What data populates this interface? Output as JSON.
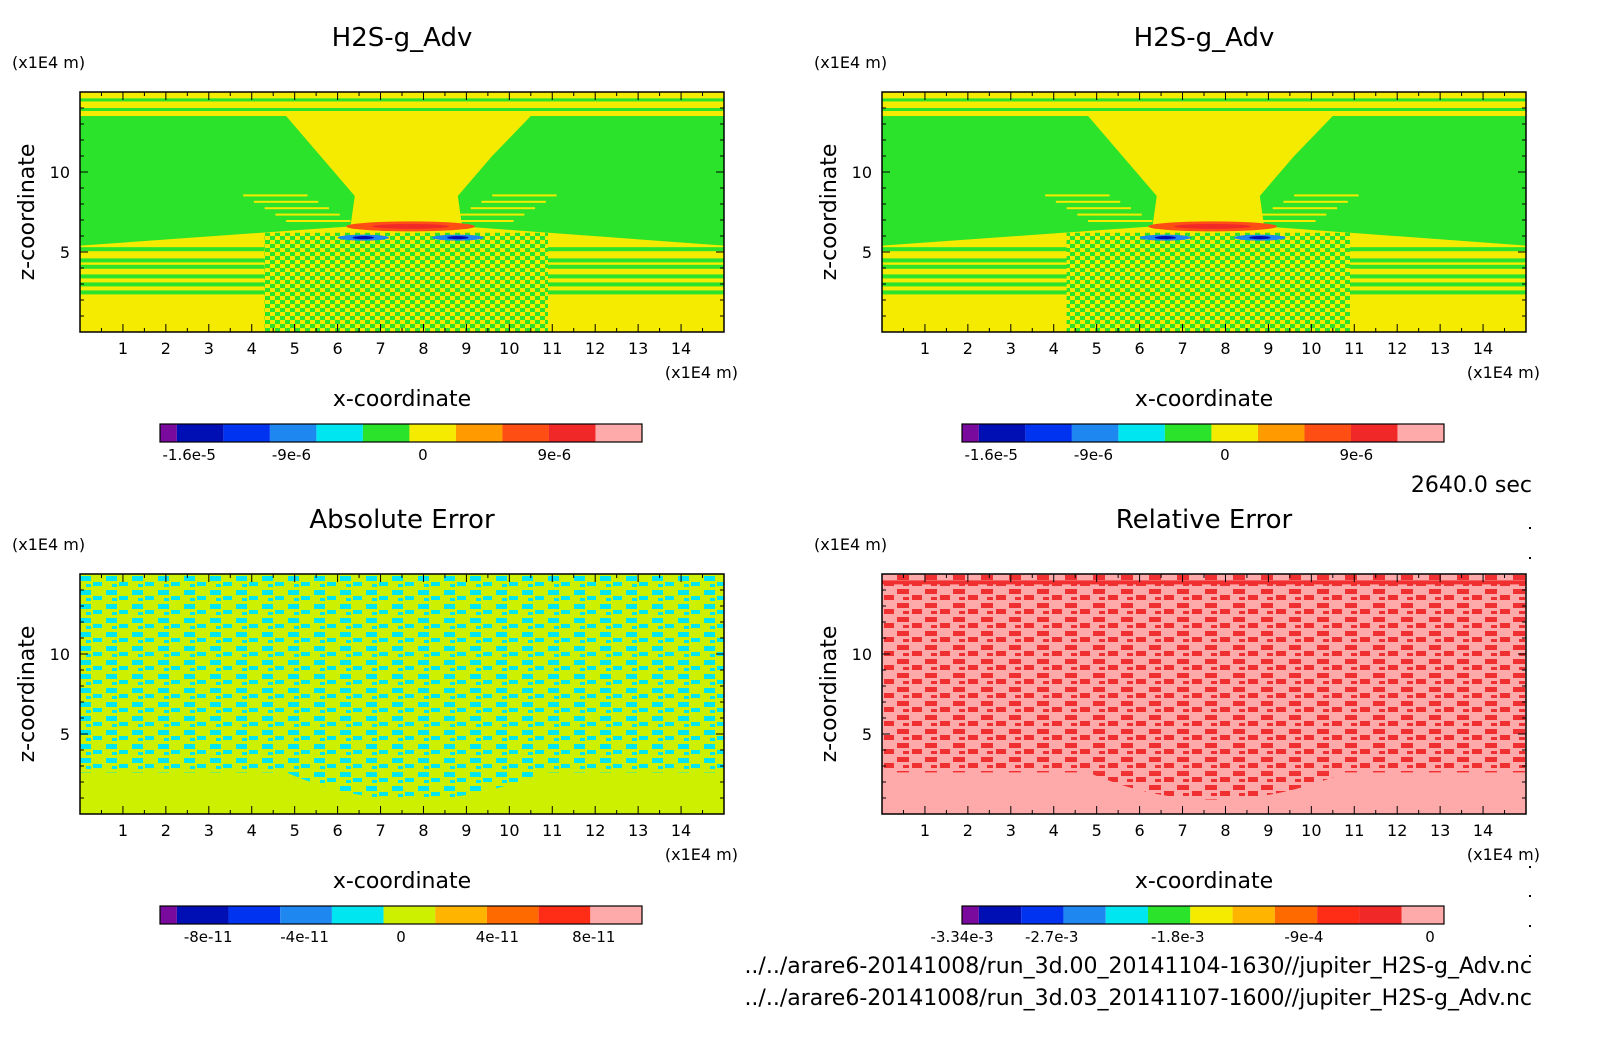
{
  "time_label": "2640.0 sec",
  "footer": {
    "line1": "../../arare6-20141008/run_3d.00_20141104-1630//jupiter_H2S-g_Adv.nc",
    "line2": "../../arare6-20141008/run_3d.03_20141107-1600//jupiter_H2S-g_Adv.nc"
  },
  "colors": {
    "scale": [
      "#7a0a9e",
      "#000fb4",
      "#0033f0",
      "#1e88f0",
      "#00e6f0",
      "#2ae32a",
      "#f5eb00",
      "#ff9b00",
      "#ff4e14",
      "#f02828",
      "#ffaaaa"
    ],
    "abs_scale": [
      "#7a0a9e",
      "#000fb4",
      "#0033f0",
      "#1e88f0",
      "#00e6f0",
      "#ccf000",
      "#ffb400",
      "#ff6a00",
      "#ff2d16",
      "#ffaaaa"
    ],
    "rel_scale": [
      "#7a0a9e",
      "#000fb4",
      "#0033f0",
      "#1e88f0",
      "#00e6f0",
      "#2ae32a",
      "#f5eb00",
      "#ffb400",
      "#ff6a00",
      "#ff2d16",
      "#f02828",
      "#ffaaaa"
    ]
  },
  "chart_data": [
    {
      "type": "heatmap",
      "title": "H2S-g_Adv",
      "xlabel": "x-coordinate",
      "ylabel": "z-coordinate",
      "x_unit": "(x1E4 m)",
      "y_unit": "(x1E4 m)",
      "xlim": [
        0,
        15
      ],
      "ylim": [
        0,
        15
      ],
      "x_ticks": [
        "1",
        "2",
        "3",
        "4",
        "5",
        "6",
        "7",
        "8",
        "9",
        "10",
        "11",
        "12",
        "13",
        "14"
      ],
      "y_ticks": [
        "5",
        "10"
      ],
      "colorbar_ticks": [
        "-1.6e-5",
        "-9e-6",
        "0",
        "9e-6"
      ],
      "colorbar_tick_values": [
        -1.6e-05,
        -9e-06,
        0,
        9e-06
      ],
      "colorbar_range": [
        -1.8e-05,
        1.5e-05
      ]
    },
    {
      "type": "heatmap",
      "title": "H2S-g_Adv",
      "xlabel": "x-coordinate",
      "ylabel": "z-coordinate",
      "x_unit": "(x1E4 m)",
      "y_unit": "(x1E4 m)",
      "xlim": [
        0,
        15
      ],
      "ylim": [
        0,
        15
      ],
      "x_ticks": [
        "1",
        "2",
        "3",
        "4",
        "5",
        "6",
        "7",
        "8",
        "9",
        "10",
        "11",
        "12",
        "13",
        "14"
      ],
      "y_ticks": [
        "5",
        "10"
      ],
      "colorbar_ticks": [
        "-1.6e-5",
        "-9e-6",
        "0",
        "9e-6"
      ],
      "colorbar_tick_values": [
        -1.6e-05,
        -9e-06,
        0,
        9e-06
      ],
      "colorbar_range": [
        -1.8e-05,
        1.5e-05
      ]
    },
    {
      "type": "heatmap",
      "title": "Absolute Error",
      "xlabel": "x-coordinate",
      "ylabel": "z-coordinate",
      "x_unit": "(x1E4 m)",
      "y_unit": "(x1E4 m)",
      "xlim": [
        0,
        15
      ],
      "ylim": [
        0,
        15
      ],
      "x_ticks": [
        "1",
        "2",
        "3",
        "4",
        "5",
        "6",
        "7",
        "8",
        "9",
        "10",
        "11",
        "12",
        "13",
        "14"
      ],
      "y_ticks": [
        "5",
        "10"
      ],
      "colorbar_ticks": [
        "-8e-11",
        "-4e-11",
        "0",
        "4e-11",
        "8e-11"
      ],
      "colorbar_tick_values": [
        -8e-11,
        -4e-11,
        0,
        4e-11,
        8e-11
      ],
      "colorbar_range": [
        -1e-10,
        1e-10
      ]
    },
    {
      "type": "heatmap",
      "title": "Relative Error",
      "xlabel": "x-coordinate",
      "ylabel": "z-coordinate",
      "x_unit": "(x1E4 m)",
      "y_unit": "(x1E4 m)",
      "xlim": [
        0,
        15
      ],
      "ylim": [
        0,
        15
      ],
      "x_ticks": [
        "1",
        "2",
        "3",
        "4",
        "5",
        "6",
        "7",
        "8",
        "9",
        "10",
        "11",
        "12",
        "13",
        "14"
      ],
      "y_ticks": [
        "5",
        "10"
      ],
      "colorbar_ticks": [
        "-3.34e-3",
        "-2.7e-3",
        "-1.8e-3",
        "-9e-4",
        "0"
      ],
      "colorbar_tick_values": [
        -0.00334,
        -0.0027,
        -0.0018,
        -0.0009,
        0
      ],
      "colorbar_range": [
        -0.00334,
        0.0001
      ]
    }
  ]
}
